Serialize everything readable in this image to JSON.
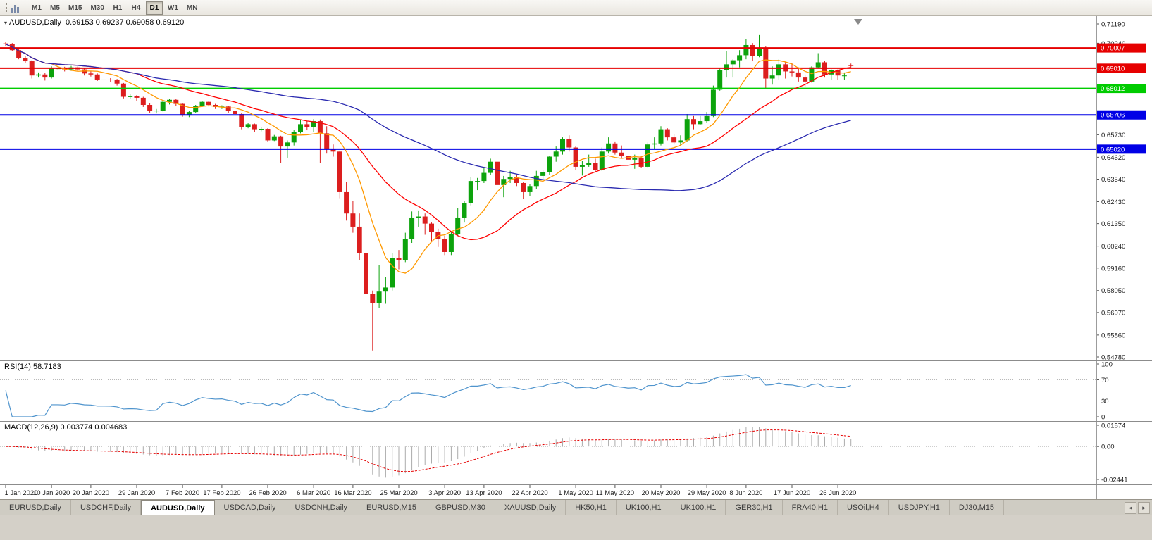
{
  "toolbar": {
    "timeframes": [
      {
        "label": "M1",
        "active": false
      },
      {
        "label": "M5",
        "active": false
      },
      {
        "label": "M15",
        "active": false
      },
      {
        "label": "M30",
        "active": false
      },
      {
        "label": "H1",
        "active": false
      },
      {
        "label": "H4",
        "active": false
      },
      {
        "label": "D1",
        "active": true
      },
      {
        "label": "W1",
        "active": false
      },
      {
        "label": "MN",
        "active": false
      }
    ]
  },
  "chart": {
    "symbol_period": "AUDUSD,Daily",
    "ohlc_label": "0.69153 0.69237 0.69058 0.69120",
    "colors": {
      "bull": "#0ca30c",
      "bear": "#dc1e1e",
      "ma_fast": "#ff9900",
      "ma_mid": "#ff0000",
      "ma_slow": "#2a2ab0",
      "axis_text": "#1a1a1a",
      "background": "#ffffff"
    },
    "price_axis_labels": [
      {
        "label": "0.71190",
        "value": 0.7119
      },
      {
        "label": "0.70240",
        "value": 0.7024
      },
      {
        "label": "0.65730",
        "value": 0.6573
      },
      {
        "label": "0.64620",
        "value": 0.6462
      },
      {
        "label": "0.63540",
        "value": 0.6354
      },
      {
        "label": "0.62430",
        "value": 0.6243
      },
      {
        "label": "0.61350",
        "value": 0.6135
      },
      {
        "label": "0.60240",
        "value": 0.6024
      },
      {
        "label": "0.59160",
        "value": 0.5916
      },
      {
        "label": "0.58050",
        "value": 0.5805
      },
      {
        "label": "0.56970",
        "value": 0.5697
      },
      {
        "label": "0.55860",
        "value": 0.5586
      },
      {
        "label": "0.54780",
        "value": 0.5478
      }
    ],
    "hlines": [
      {
        "label": "0.70007",
        "value": 0.70007,
        "color": "#e60000",
        "width": 2
      },
      {
        "label": "0.69010",
        "value": 0.6901,
        "color": "#e60000",
        "width": 2
      },
      {
        "label": "0.68012",
        "value": 0.68012,
        "color": "#00cc00",
        "width": 2
      },
      {
        "label": "0.66706",
        "value": 0.66706,
        "color": "#0000e6",
        "width": 2
      },
      {
        "label": "0.65020",
        "value": 0.6502,
        "color": "#0000e6",
        "width": 2
      }
    ]
  },
  "rsi": {
    "label": "RSI(14) 58.7183",
    "period": 14,
    "levels": [
      70,
      30
    ],
    "axis_labels": [
      {
        "label": "100",
        "value": 100
      },
      {
        "label": "70",
        "value": 70
      },
      {
        "label": "30",
        "value": 30
      },
      {
        "label": "0",
        "value": 0
      }
    ],
    "color": "#4f94cd"
  },
  "macd": {
    "label": "MACD(12,26,9) 0.003774 0.004683",
    "axis_labels": [
      {
        "label": "0.01574",
        "value": 0.01574
      },
      {
        "label": "0.00",
        "value": 0
      },
      {
        "label": "-0.02441",
        "value": -0.02441
      }
    ],
    "range": [
      -0.02441,
      0.01574
    ],
    "bar_color": "#ababab",
    "signal_color": "#e60000"
  },
  "x_axis": {
    "ticks": [
      {
        "label": "1 Jan 2020",
        "i": 0
      },
      {
        "label": "10 Jan 2020",
        "i": 7
      },
      {
        "label": "20 Jan 2020",
        "i": 13
      },
      {
        "label": "29 Jan 2020",
        "i": 20
      },
      {
        "label": "7 Feb 2020",
        "i": 27
      },
      {
        "label": "17 Feb 2020",
        "i": 33
      },
      {
        "label": "26 Feb 2020",
        "i": 40
      },
      {
        "label": "6 Mar 2020",
        "i": 47
      },
      {
        "label": "16 Mar 2020",
        "i": 53
      },
      {
        "label": "25 Mar 2020",
        "i": 60
      },
      {
        "label": "3 Apr 2020",
        "i": 67
      },
      {
        "label": "13 Apr 2020",
        "i": 73
      },
      {
        "label": "22 Apr 2020",
        "i": 80
      },
      {
        "label": "1 May 2020",
        "i": 87
      },
      {
        "label": "11 May 2020",
        "i": 93
      },
      {
        "label": "20 May 2020",
        "i": 100
      },
      {
        "label": "29 May 2020",
        "i": 107
      },
      {
        "label": "8 Jun 2020",
        "i": 113
      },
      {
        "label": "17 Jun 2020",
        "i": 120
      },
      {
        "label": "26 Jun 2020",
        "i": 127
      }
    ]
  },
  "tabs": [
    {
      "label": "EURUSD,Daily",
      "active": false
    },
    {
      "label": "USDCHF,Daily",
      "active": false
    },
    {
      "label": "AUDUSD,Daily",
      "active": true
    },
    {
      "label": "USDCAD,Daily",
      "active": false
    },
    {
      "label": "USDCNH,Daily",
      "active": false
    },
    {
      "label": "EURUSD,M15",
      "active": false
    },
    {
      "label": "GBPUSD,M30",
      "active": false
    },
    {
      "label": "XAUUSD,Daily",
      "active": false
    },
    {
      "label": "HK50,H1",
      "active": false
    },
    {
      "label": "UK100,H1",
      "active": false
    },
    {
      "label": "UK100,H1",
      "active": false
    },
    {
      "label": "GER30,H1",
      "active": false
    },
    {
      "label": "FRA40,H1",
      "active": false
    },
    {
      "label": "USOil,H4",
      "active": false
    },
    {
      "label": "USDJPY,H1",
      "active": false
    },
    {
      "label": "DJ30,M15",
      "active": false
    }
  ],
  "chart_data": {
    "type": "candlestick",
    "symbol": "AUDUSD",
    "timeframe": "Daily",
    "title": "AUDUSD,Daily 0.69153 0.69237 0.69058 0.69120",
    "ylim": [
      0.5478,
      0.7119
    ],
    "overlays": [
      {
        "name": "sma-fast",
        "period": 8,
        "color_key": "ma_fast"
      },
      {
        "name": "sma-mid",
        "period": 21,
        "color_key": "ma_mid"
      },
      {
        "name": "sma-slow",
        "period": 55,
        "color_key": "ma_slow"
      }
    ],
    "ohlc": [
      [
        0.7023,
        0.7032,
        0.7008,
        0.702
      ],
      [
        0.702,
        0.7025,
        0.6985,
        0.699
      ],
      [
        0.699,
        0.6995,
        0.6945,
        0.695
      ],
      [
        0.695,
        0.696,
        0.6925,
        0.6935
      ],
      [
        0.6935,
        0.694,
        0.685,
        0.6865
      ],
      [
        0.6865,
        0.688,
        0.6855,
        0.687
      ],
      [
        0.687,
        0.6878,
        0.684,
        0.6855
      ],
      [
        0.6855,
        0.691,
        0.685,
        0.69
      ],
      [
        0.69,
        0.6912,
        0.689,
        0.69
      ],
      [
        0.69,
        0.6908,
        0.6885,
        0.6895
      ],
      [
        0.6895,
        0.6912,
        0.6888,
        0.6905
      ],
      [
        0.6905,
        0.691,
        0.6885,
        0.6895
      ],
      [
        0.6895,
        0.69,
        0.6865,
        0.6875
      ],
      [
        0.6875,
        0.6885,
        0.686,
        0.687
      ],
      [
        0.687,
        0.6875,
        0.6838,
        0.6845
      ],
      [
        0.6845,
        0.6855,
        0.683,
        0.6845
      ],
      [
        0.6845,
        0.6852,
        0.6832,
        0.6842
      ],
      [
        0.6842,
        0.6848,
        0.6815,
        0.6825
      ],
      [
        0.6825,
        0.6828,
        0.6752,
        0.676
      ],
      [
        0.676,
        0.6772,
        0.675,
        0.6762
      ],
      [
        0.6762,
        0.6768,
        0.674,
        0.6755
      ],
      [
        0.6755,
        0.676,
        0.671,
        0.672
      ],
      [
        0.672,
        0.6728,
        0.6682,
        0.669
      ],
      [
        0.669,
        0.67,
        0.6678,
        0.6692
      ],
      [
        0.6692,
        0.674,
        0.6688,
        0.6735
      ],
      [
        0.6735,
        0.675,
        0.6722,
        0.6745
      ],
      [
        0.6745,
        0.675,
        0.6715,
        0.6725
      ],
      [
        0.6725,
        0.673,
        0.6662,
        0.667
      ],
      [
        0.667,
        0.6692,
        0.666,
        0.6685
      ],
      [
        0.6685,
        0.672,
        0.668,
        0.6715
      ],
      [
        0.6715,
        0.674,
        0.671,
        0.6735
      ],
      [
        0.6735,
        0.674,
        0.6712,
        0.672
      ],
      [
        0.672,
        0.6725,
        0.67,
        0.671
      ],
      [
        0.671,
        0.6718,
        0.67,
        0.6712
      ],
      [
        0.6712,
        0.6715,
        0.668,
        0.669
      ],
      [
        0.669,
        0.6695,
        0.6665,
        0.6675
      ],
      [
        0.6675,
        0.6678,
        0.66,
        0.661
      ],
      [
        0.661,
        0.663,
        0.6605,
        0.6625
      ],
      [
        0.6625,
        0.6628,
        0.6585,
        0.66
      ],
      [
        0.66,
        0.661,
        0.659,
        0.6602
      ],
      [
        0.6602,
        0.6605,
        0.654,
        0.6545
      ],
      [
        0.6545,
        0.6572,
        0.6542,
        0.6565
      ],
      [
        0.6565,
        0.6568,
        0.6435,
        0.6515
      ],
      [
        0.6515,
        0.6545,
        0.646,
        0.6535
      ],
      [
        0.6535,
        0.6595,
        0.652,
        0.6585
      ],
      [
        0.6585,
        0.6645,
        0.658,
        0.6625
      ],
      [
        0.6625,
        0.664,
        0.6595,
        0.661
      ],
      [
        0.661,
        0.665,
        0.6585,
        0.664
      ],
      [
        0.664,
        0.6648,
        0.6435,
        0.658
      ],
      [
        0.658,
        0.6615,
        0.648,
        0.65
      ],
      [
        0.65,
        0.6525,
        0.6465,
        0.649
      ],
      [
        0.649,
        0.6495,
        0.626,
        0.629
      ],
      [
        0.629,
        0.634,
        0.615,
        0.6185
      ],
      [
        0.6185,
        0.6245,
        0.609,
        0.612
      ],
      [
        0.612,
        0.6185,
        0.5955,
        0.599
      ],
      [
        0.599,
        0.6,
        0.5745,
        0.579
      ],
      [
        0.579,
        0.5805,
        0.551,
        0.5745
      ],
      [
        0.5745,
        0.593,
        0.572,
        0.58
      ],
      [
        0.58,
        0.587,
        0.574,
        0.582
      ],
      [
        0.582,
        0.599,
        0.5805,
        0.5965
      ],
      [
        0.5965,
        0.6005,
        0.591,
        0.5955
      ],
      [
        0.5955,
        0.609,
        0.5945,
        0.606
      ],
      [
        0.606,
        0.6195,
        0.604,
        0.6165
      ],
      [
        0.6165,
        0.62,
        0.612,
        0.617
      ],
      [
        0.617,
        0.6185,
        0.608,
        0.6135
      ],
      [
        0.6135,
        0.614,
        0.605,
        0.6095
      ],
      [
        0.6095,
        0.611,
        0.602,
        0.606
      ],
      [
        0.606,
        0.6075,
        0.598,
        0.5995
      ],
      [
        0.5995,
        0.6095,
        0.598,
        0.6085
      ],
      [
        0.6085,
        0.621,
        0.6075,
        0.6165
      ],
      [
        0.6165,
        0.6245,
        0.614,
        0.6235
      ],
      [
        0.6235,
        0.6365,
        0.6225,
        0.6345
      ],
      [
        0.6345,
        0.636,
        0.63,
        0.6345
      ],
      [
        0.6345,
        0.6415,
        0.6335,
        0.6385
      ],
      [
        0.6385,
        0.6455,
        0.6375,
        0.644
      ],
      [
        0.644,
        0.6445,
        0.63,
        0.6325
      ],
      [
        0.6325,
        0.637,
        0.6265,
        0.6355
      ],
      [
        0.6355,
        0.6395,
        0.6335,
        0.6365
      ],
      [
        0.6365,
        0.6375,
        0.632,
        0.6335
      ],
      [
        0.6335,
        0.634,
        0.6255,
        0.629
      ],
      [
        0.629,
        0.633,
        0.627,
        0.632
      ],
      [
        0.632,
        0.6395,
        0.6305,
        0.637
      ],
      [
        0.637,
        0.64,
        0.635,
        0.639
      ],
      [
        0.639,
        0.647,
        0.6375,
        0.6465
      ],
      [
        0.6465,
        0.6515,
        0.644,
        0.649
      ],
      [
        0.649,
        0.656,
        0.6475,
        0.655
      ],
      [
        0.655,
        0.657,
        0.649,
        0.651
      ],
      [
        0.651,
        0.6515,
        0.64,
        0.6415
      ],
      [
        0.6415,
        0.6445,
        0.6372,
        0.6425
      ],
      [
        0.6425,
        0.6475,
        0.6415,
        0.6435
      ],
      [
        0.6435,
        0.6455,
        0.639,
        0.64
      ],
      [
        0.64,
        0.651,
        0.6395,
        0.649
      ],
      [
        0.649,
        0.656,
        0.648,
        0.653
      ],
      [
        0.653,
        0.654,
        0.6475,
        0.6485
      ],
      [
        0.6485,
        0.652,
        0.646,
        0.647
      ],
      [
        0.647,
        0.6505,
        0.644,
        0.645
      ],
      [
        0.645,
        0.6475,
        0.6405,
        0.646
      ],
      [
        0.646,
        0.647,
        0.641,
        0.6415
      ],
      [
        0.6415,
        0.6535,
        0.641,
        0.6525
      ],
      [
        0.6525,
        0.656,
        0.6505,
        0.653
      ],
      [
        0.653,
        0.6615,
        0.652,
        0.66
      ],
      [
        0.66,
        0.6605,
        0.6545,
        0.656
      ],
      [
        0.656,
        0.6575,
        0.6525,
        0.6535
      ],
      [
        0.6535,
        0.657,
        0.652,
        0.6545
      ],
      [
        0.6545,
        0.6675,
        0.654,
        0.665
      ],
      [
        0.665,
        0.6665,
        0.66,
        0.6625
      ],
      [
        0.6625,
        0.6665,
        0.662,
        0.664
      ],
      [
        0.664,
        0.6685,
        0.663,
        0.6665
      ],
      [
        0.6665,
        0.6815,
        0.666,
        0.6795
      ],
      [
        0.6795,
        0.69,
        0.679,
        0.689
      ],
      [
        0.689,
        0.6985,
        0.6855,
        0.692
      ],
      [
        0.692,
        0.6945,
        0.6855,
        0.694
      ],
      [
        0.694,
        0.699,
        0.6905,
        0.6965
      ],
      [
        0.6965,
        0.7045,
        0.6945,
        0.7015
      ],
      [
        0.7015,
        0.7025,
        0.6935,
        0.696
      ],
      [
        0.696,
        0.7064,
        0.6955,
        0.6995
      ],
      [
        0.6995,
        0.701,
        0.68,
        0.685
      ],
      [
        0.685,
        0.691,
        0.682,
        0.6865
      ],
      [
        0.6865,
        0.6945,
        0.6845,
        0.692
      ],
      [
        0.692,
        0.693,
        0.685,
        0.6885
      ],
      [
        0.6885,
        0.6925,
        0.686,
        0.688
      ],
      [
        0.688,
        0.6905,
        0.6835,
        0.6855
      ],
      [
        0.6855,
        0.687,
        0.681,
        0.6835
      ],
      [
        0.6835,
        0.691,
        0.683,
        0.6905
      ],
      [
        0.6905,
        0.6975,
        0.69,
        0.693
      ],
      [
        0.693,
        0.6935,
        0.6855,
        0.687
      ],
      [
        0.687,
        0.6895,
        0.6845,
        0.689
      ],
      [
        0.689,
        0.6895,
        0.6845,
        0.6865
      ],
      [
        0.6865,
        0.688,
        0.6845,
        0.6865
      ],
      [
        0.69153,
        0.69237,
        0.69058,
        0.6912
      ]
    ]
  }
}
